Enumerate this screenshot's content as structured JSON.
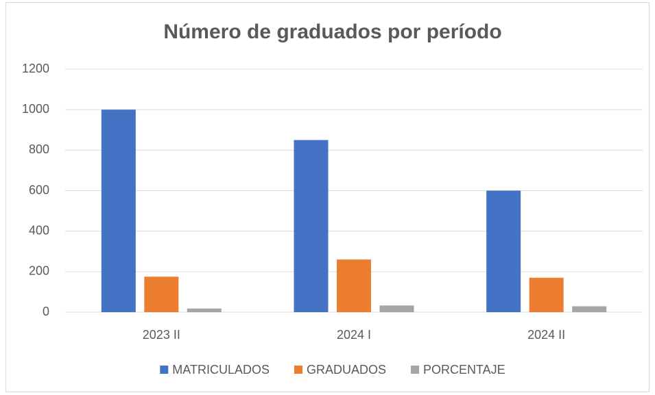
{
  "chart_data": {
    "type": "bar",
    "title": "Número de graduados por período",
    "categories": [
      "2023 II",
      "2024 I",
      "2024 II"
    ],
    "series": [
      {
        "name": "MATRICULADOS",
        "color": "#4472c4",
        "values": [
          1000,
          850,
          600
        ]
      },
      {
        "name": "GRADUADOS",
        "color": "#ed7d31",
        "values": [
          175,
          260,
          170
        ]
      },
      {
        "name": "PORCENTAJE",
        "color": "#a5a5a5",
        "values": [
          18,
          33,
          29
        ]
      }
    ],
    "ylim": [
      0,
      1200
    ],
    "yticks": [
      0,
      200,
      400,
      600,
      800,
      1000,
      1200
    ],
    "grid": true,
    "legend": "bottom"
  }
}
